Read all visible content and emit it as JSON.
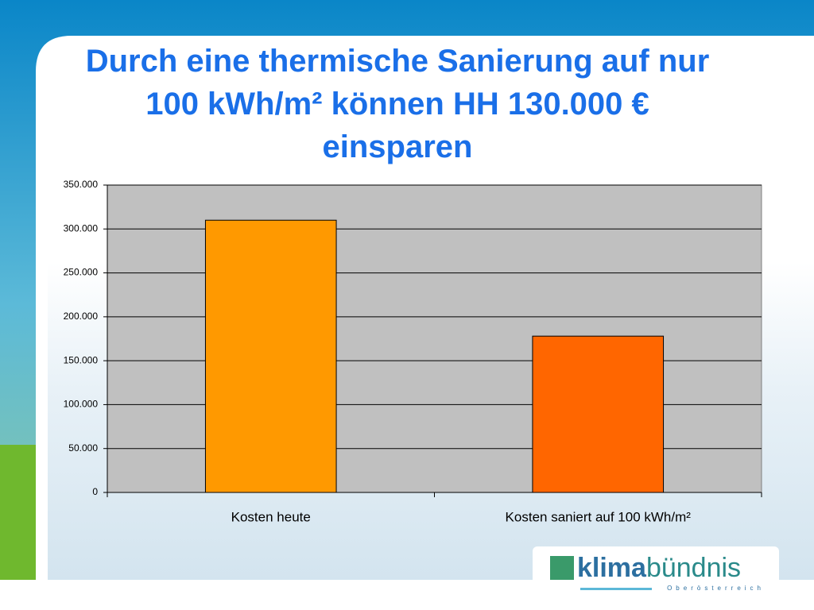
{
  "chart_data": {
    "type": "bar",
    "title": "Durch eine thermische Sanierung auf nur 100 kWh/m² können HH 130.000 € einsparen",
    "categories": [
      "Kosten heute",
      "Kosten saniert auf 100 kWh/m²"
    ],
    "values": [
      310000,
      178000
    ],
    "colors": [
      "#ff9900",
      "#ff6600"
    ],
    "ylim": [
      0,
      350000
    ],
    "yticks": [
      0,
      {
        "value": 50000,
        "label": "50.000"
      },
      {
        "value": 100000,
        "label": "100.000"
      },
      {
        "value": 150000,
        "label": "150.000"
      },
      {
        "value": 200000,
        "label": "200.000"
      },
      {
        "value": 250000,
        "label": "250.000"
      },
      {
        "value": 300000,
        "label": "300.000"
      },
      {
        "value": 350000,
        "label": "350.000"
      }
    ],
    "grid": true
  },
  "logo": {
    "name_bold": "klima",
    "name_light": "bündnis",
    "region": "Oberösterreich"
  }
}
